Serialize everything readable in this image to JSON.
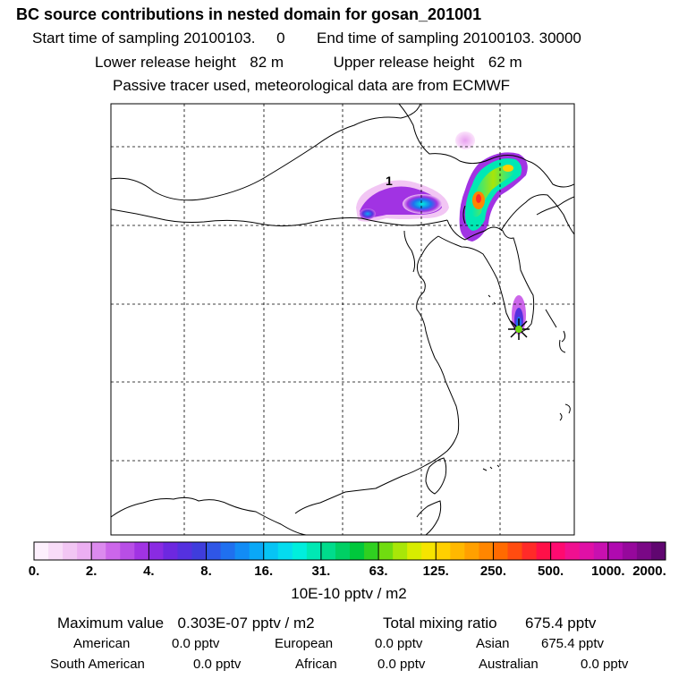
{
  "header": {
    "title": "BC  source contributions in nested domain for gosan_201001",
    "sampling_start_label": "Start time of sampling",
    "sampling_start_value": "20100103.     0",
    "sampling_end_label": "End time of sampling",
    "sampling_end_value": "20100103. 30000",
    "lower_release_label": "Lower release height",
    "lower_release_value": "82 m",
    "upper_release_label": "Upper release height",
    "upper_release_value": "62 m",
    "tracer_note": "Passive tracer used, meteorological data are from ECMWF"
  },
  "map": {
    "cluster_label": "1",
    "receptor": "Gosan"
  },
  "chart_data": {
    "type": "heatmap",
    "title": "BC  source contributions in nested domain for gosan_201001",
    "units": "10E-10 pptv / m2",
    "colorbar_ticks": [
      "0.",
      "2.",
      "4.",
      "8.",
      "16.",
      "31.",
      "63.",
      "125.",
      "250.",
      "500.",
      "1000.",
      "2000."
    ],
    "colorbar_colors": [
      "#fdf0fd",
      "#f8dcf8",
      "#f2c6f4",
      "#ecaff2",
      "#dc8aee",
      "#cc66ea",
      "#b84ee6",
      "#a133e3",
      "#8a2be2",
      "#6d28e0",
      "#5531df",
      "#3f3ddc",
      "#2f56e6",
      "#1f70ef",
      "#128cf5",
      "#0aa8f7",
      "#06c4f5",
      "#04dcef",
      "#00eedd",
      "#00e8b4",
      "#00dc8c",
      "#00d064",
      "#00c83c",
      "#30d020",
      "#70dc10",
      "#a8e608",
      "#d8ec00",
      "#f6e400",
      "#ffd000",
      "#ffb800",
      "#ffa000",
      "#ff8600",
      "#ff6a00",
      "#ff4c10",
      "#ff2a28",
      "#ff1048",
      "#ff0a70",
      "#f01090",
      "#e010a6",
      "#c810b0",
      "#b00ab0",
      "#96089c",
      "#7a0886",
      "#600670"
    ],
    "max_value": "0.303E-07 pptv / m2",
    "total_mixing_ratio": "675.4 pptv",
    "contributions": [
      {
        "region": "American",
        "value": "0.0 pptv"
      },
      {
        "region": "European",
        "value": "0.0 pptv"
      },
      {
        "region": "Asian",
        "value": "675.4 pptv"
      },
      {
        "region": "South American",
        "value": "0.0 pptv"
      },
      {
        "region": "African",
        "value": "0.0 pptv"
      },
      {
        "region": "Australian",
        "value": "0.0 pptv"
      }
    ]
  },
  "footer": {
    "max_label": "Maximum value",
    "total_label": "Total mixing ratio"
  }
}
